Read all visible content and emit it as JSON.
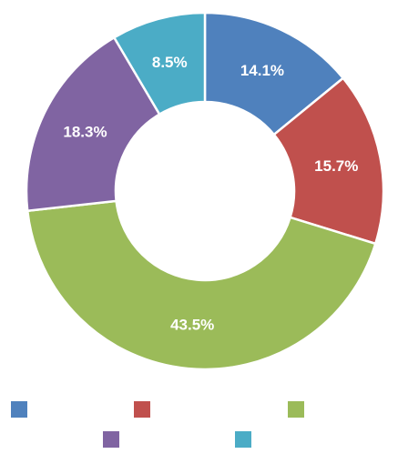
{
  "chart_data": {
    "type": "pie",
    "donut": true,
    "title": "",
    "slices": [
      {
        "name": "",
        "value": 14.1,
        "label": "14.1%",
        "color": "#4f81bd"
      },
      {
        "name": "",
        "value": 15.7,
        "label": "15.7%",
        "color": "#c0504d"
      },
      {
        "name": "",
        "value": 43.5,
        "label": "43.5%",
        "color": "#9bbb59"
      },
      {
        "name": "",
        "value": 18.3,
        "label": "18.3%",
        "color": "#8064a2"
      },
      {
        "name": "",
        "value": 8.5,
        "label": "8.5%",
        "color": "#4bacc6"
      }
    ],
    "legend": {
      "placement": "bottom"
    }
  }
}
